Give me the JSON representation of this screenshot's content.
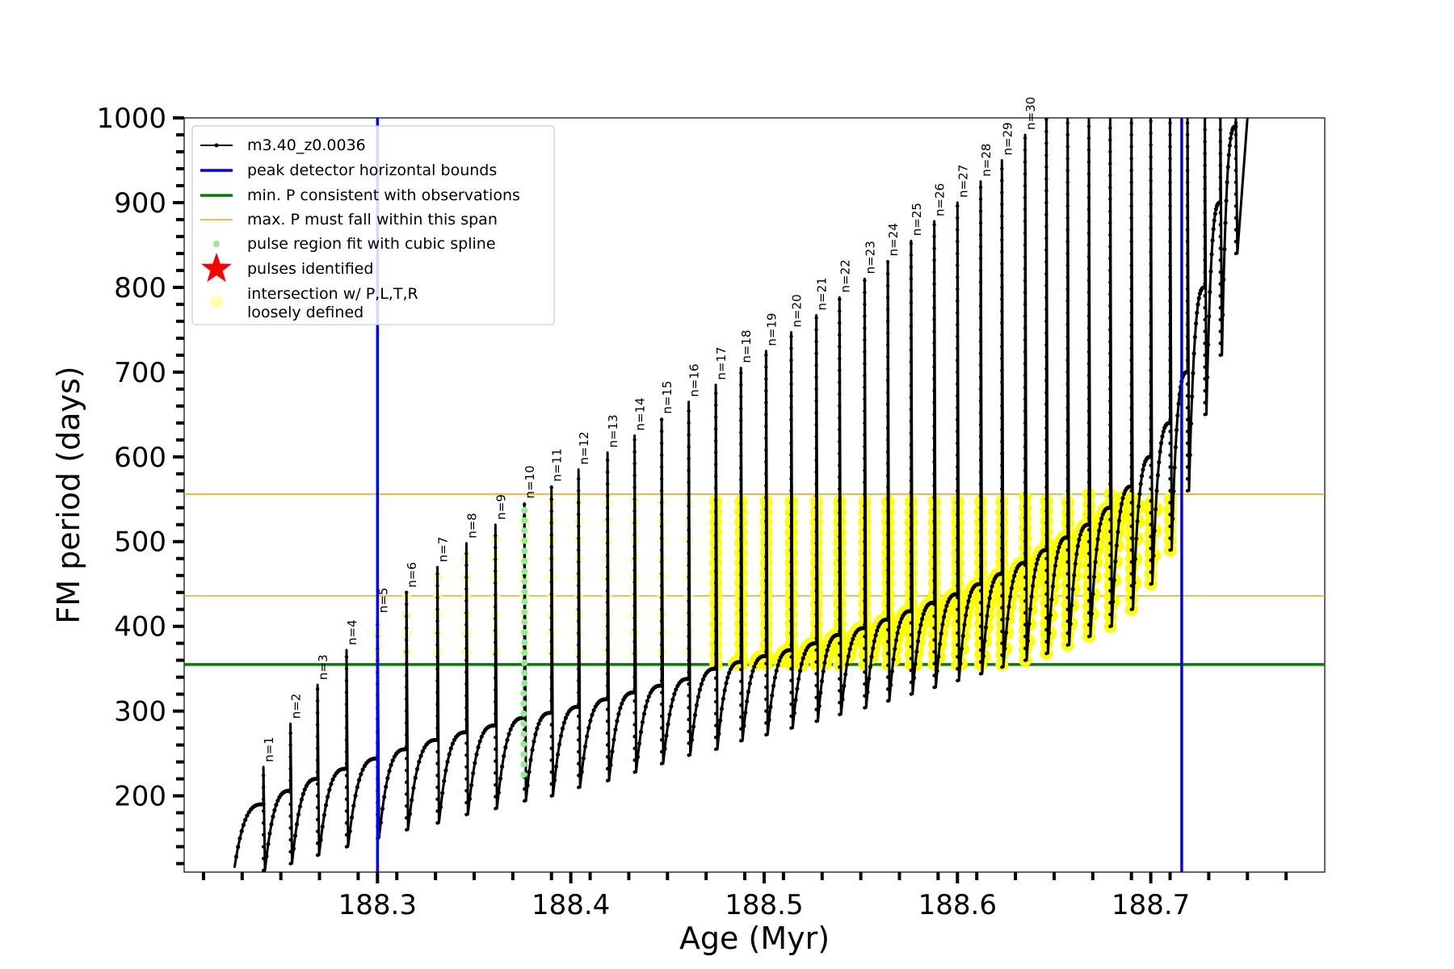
{
  "chart_data": {
    "type": "line",
    "title": "",
    "xlabel": "Age (Myr)",
    "ylabel": "FM period (days)",
    "xlim": [
      188.2,
      188.79
    ],
    "ylim": [
      110,
      1000
    ],
    "x_ticks": [
      188.3,
      188.4,
      188.5,
      188.6,
      188.7
    ],
    "x_tick_labels": [
      "188.3",
      "188.4",
      "188.5",
      "188.6",
      "188.7"
    ],
    "y_ticks": [
      200,
      300,
      400,
      500,
      600,
      700,
      800,
      900,
      1000
    ],
    "y_tick_labels": [
      "200",
      "300",
      "400",
      "500",
      "600",
      "700",
      "800",
      "900",
      "1000"
    ],
    "grid": false,
    "legend_position": "top-left",
    "colors": {
      "track": "#000000",
      "bounds": "#0000ff",
      "min_period": "#008000",
      "max_period_span": "#ffa500",
      "spline": "#90ee90",
      "pulses": "#ff0000",
      "intersection_loose": "#ffff99",
      "intersection": "#ffff00"
    },
    "legend": [
      {
        "label": "m3.40_z0.0036",
        "marker": "line-dot",
        "color": "#000000"
      },
      {
        "label": "peak detector horizontal bounds",
        "marker": "line-thick",
        "color": "#0000ff"
      },
      {
        "label": "min. P consistent with observations",
        "marker": "line-thick",
        "color": "#008000"
      },
      {
        "label": "max. P must fall within this span",
        "marker": "line-thin",
        "color": "#ffa500"
      },
      {
        "label": "pulse region fit with cubic spline",
        "marker": "dot",
        "color": "#90ee90"
      },
      {
        "label": "pulses identified",
        "marker": "star",
        "color": "#ff0000"
      },
      {
        "label": "intersection w/ P,L,T,R",
        "label2": "loosely defined",
        "marker": "big-dot",
        "color": "#ffff99"
      }
    ],
    "vertical_lines": [
      188.3,
      188.716
    ],
    "min_period_line": 355,
    "max_period_span": [
      436,
      556
    ],
    "pulse_labels": [
      "n=1",
      "n=2",
      "n=3",
      "n=4",
      "n=5",
      "n=6",
      "n=7",
      "n=8",
      "n=9",
      "n=10",
      "n=11",
      "n=12",
      "n=13",
      "n=14",
      "n=15",
      "n=16",
      "n=17",
      "n=18",
      "n=19",
      "n=20",
      "n=21",
      "n=22",
      "n=23",
      "n=24",
      "n=25",
      "n=26",
      "n=27",
      "n=28",
      "n=29",
      "n=30"
    ],
    "pulses": [
      {
        "n": 1,
        "age": 188.241,
        "peak": 234,
        "base": 190,
        "min": 112
      },
      {
        "n": 2,
        "age": 188.255,
        "peak": 285,
        "base": 206,
        "min": 120
      },
      {
        "n": 3,
        "age": 188.269,
        "peak": 331,
        "base": 220,
        "min": 130
      },
      {
        "n": 4,
        "age": 188.284,
        "peak": 372,
        "base": 232,
        "min": 140
      },
      {
        "n": 5,
        "age": 188.3,
        "peak": 410,
        "base": 244,
        "min": 150
      },
      {
        "n": 6,
        "age": 188.315,
        "peak": 440,
        "base": 255,
        "min": 160
      },
      {
        "n": 7,
        "age": 188.331,
        "peak": 470,
        "base": 266,
        "min": 168
      },
      {
        "n": 8,
        "age": 188.346,
        "peak": 498,
        "base": 275,
        "min": 178
      },
      {
        "n": 9,
        "age": 188.361,
        "peak": 520,
        "base": 283,
        "min": 185
      },
      {
        "n": 10,
        "age": 188.376,
        "peak": 545,
        "base": 292,
        "min": 194
      },
      {
        "n": 11,
        "age": 188.39,
        "peak": 565,
        "base": 298,
        "min": 200
      },
      {
        "n": 12,
        "age": 188.404,
        "peak": 585,
        "base": 305,
        "min": 210
      },
      {
        "n": 13,
        "age": 188.419,
        "peak": 605,
        "base": 314,
        "min": 218
      },
      {
        "n": 14,
        "age": 188.433,
        "peak": 625,
        "base": 322,
        "min": 228
      },
      {
        "n": 15,
        "age": 188.447,
        "peak": 645,
        "base": 330,
        "min": 238
      },
      {
        "n": 16,
        "age": 188.461,
        "peak": 665,
        "base": 338,
        "min": 248
      },
      {
        "n": 17,
        "age": 188.475,
        "peak": 685,
        "base": 350,
        "min": 255
      },
      {
        "n": 18,
        "age": 188.488,
        "peak": 705,
        "base": 358,
        "min": 265
      },
      {
        "n": 19,
        "age": 188.501,
        "peak": 725,
        "base": 365,
        "min": 272
      },
      {
        "n": 20,
        "age": 188.514,
        "peak": 747,
        "base": 372,
        "min": 280
      },
      {
        "n": 21,
        "age": 188.527,
        "peak": 767,
        "base": 380,
        "min": 288
      },
      {
        "n": 22,
        "age": 188.539,
        "peak": 788,
        "base": 390,
        "min": 296
      },
      {
        "n": 23,
        "age": 188.552,
        "peak": 810,
        "base": 398,
        "min": 304
      },
      {
        "n": 24,
        "age": 188.564,
        "peak": 831,
        "base": 408,
        "min": 312
      },
      {
        "n": 25,
        "age": 188.576,
        "peak": 855,
        "base": 418,
        "min": 320
      },
      {
        "n": 26,
        "age": 188.588,
        "peak": 878,
        "base": 428,
        "min": 328
      },
      {
        "n": 27,
        "age": 188.6,
        "peak": 900,
        "base": 438,
        "min": 336
      },
      {
        "n": 28,
        "age": 188.612,
        "peak": 925,
        "base": 450,
        "min": 344
      },
      {
        "n": 29,
        "age": 188.623,
        "peak": 950,
        "base": 462,
        "min": 352
      },
      {
        "n": 30,
        "age": 188.635,
        "peak": 980,
        "base": 475,
        "min": 360
      },
      {
        "age": 188.646,
        "peak": 1000,
        "base": 490,
        "min": 368
      },
      {
        "age": 188.657,
        "peak": 1000,
        "base": 505,
        "min": 378
      },
      {
        "age": 188.668,
        "peak": 1000,
        "base": 520,
        "min": 388
      },
      {
        "age": 188.679,
        "peak": 1000,
        "base": 540,
        "min": 400
      },
      {
        "age": 188.69,
        "peak": 1000,
        "base": 565,
        "min": 420
      },
      {
        "age": 188.7,
        "peak": 1000,
        "base": 600,
        "min": 450
      },
      {
        "age": 188.71,
        "peak": 1000,
        "base": 640,
        "min": 490
      },
      {
        "age": 188.719,
        "peak": 1000,
        "base": 700,
        "min": 560
      },
      {
        "age": 188.728,
        "peak": 1000,
        "base": 800,
        "min": 650
      },
      {
        "age": 188.736,
        "peak": 1000,
        "base": 900,
        "min": 720
      },
      {
        "age": 188.744,
        "peak": 1000,
        "base": 990,
        "min": 840
      }
    ],
    "track_start": {
      "age": 188.226,
      "period": 115
    },
    "track_end_age": 188.75
  }
}
